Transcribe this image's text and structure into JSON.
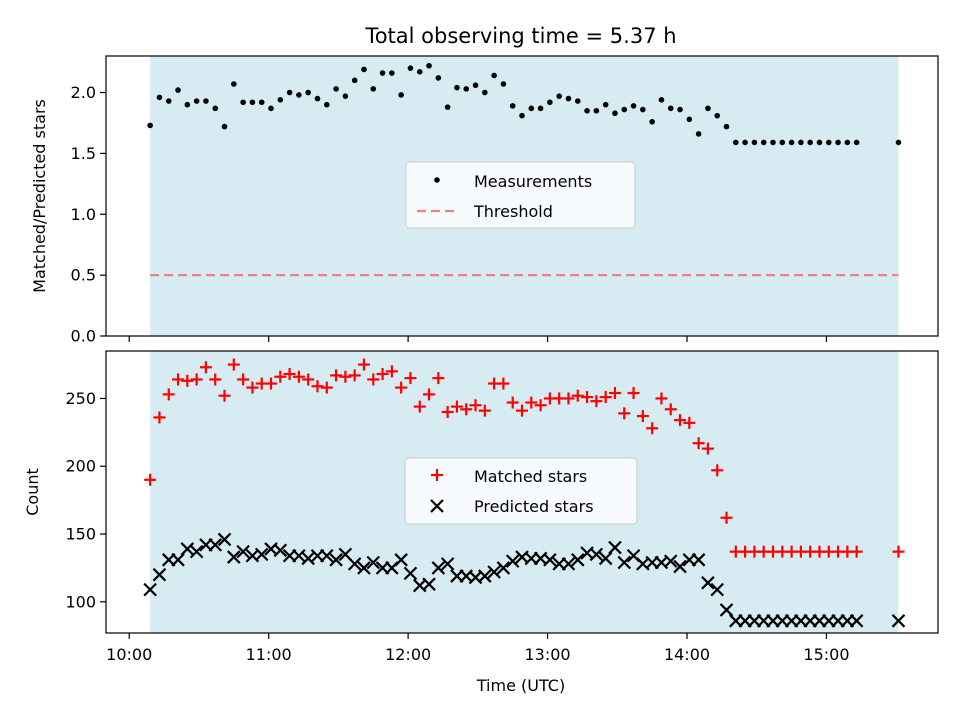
{
  "chart_data": [
    {
      "type": "scatter",
      "title": "Total observing time = 5.37 h",
      "xlabel": "",
      "ylabel": "Matched/Predicted stars",
      "ylim": [
        0,
        2.3
      ],
      "yticks": [
        "0.0",
        "0.5",
        "1.0",
        "1.5",
        "2.0"
      ],
      "shaded_span": {
        "start": "10:09",
        "end": "15:31",
        "color": "#add8e6"
      },
      "legend_position": "center",
      "series": [
        {
          "name": "Measurements",
          "marker": "dot",
          "color": "#000000",
          "x": [
            "10:09",
            "10:13",
            "10:17",
            "10:21",
            "10:25",
            "10:29",
            "10:33",
            "10:37",
            "10:41",
            "10:45",
            "10:49",
            "10:53",
            "10:57",
            "11:01",
            "11:05",
            "11:09",
            "11:13",
            "11:17",
            "11:21",
            "11:25",
            "11:29",
            "11:33",
            "11:37",
            "11:41",
            "11:45",
            "11:49",
            "11:53",
            "11:57",
            "12:01",
            "12:05",
            "12:09",
            "12:13",
            "12:17",
            "12:21",
            "12:25",
            "12:29",
            "12:33",
            "12:37",
            "12:41",
            "12:45",
            "12:49",
            "12:53",
            "12:57",
            "13:01",
            "13:05",
            "13:09",
            "13:13",
            "13:17",
            "13:21",
            "13:25",
            "13:29",
            "13:33",
            "13:37",
            "13:41",
            "13:45",
            "13:49",
            "13:53",
            "13:57",
            "14:01",
            "14:05",
            "14:09",
            "14:13",
            "14:17",
            "14:21",
            "14:25",
            "14:29",
            "14:33",
            "14:37",
            "14:41",
            "14:45",
            "14:49",
            "14:53",
            "14:57",
            "15:01",
            "15:05",
            "15:09",
            "15:13",
            "15:31"
          ],
          "y": [
            1.73,
            1.96,
            1.93,
            2.02,
            1.9,
            1.93,
            1.93,
            1.87,
            1.72,
            2.07,
            1.92,
            1.92,
            1.92,
            1.87,
            1.94,
            2.0,
            1.98,
            2.0,
            1.95,
            1.9,
            2.03,
            1.97,
            2.1,
            2.19,
            2.03,
            2.16,
            2.16,
            1.98,
            2.2,
            2.17,
            2.22,
            2.12,
            1.88,
            2.04,
            2.03,
            2.06,
            2.0,
            2.14,
            2.07,
            1.89,
            1.81,
            1.87,
            1.87,
            1.92,
            1.97,
            1.95,
            1.93,
            1.85,
            1.85,
            1.9,
            1.83,
            1.86,
            1.89,
            1.86,
            1.76,
            1.94,
            1.87,
            1.86,
            1.78,
            1.66,
            1.87,
            1.81,
            1.72,
            1.59,
            1.59,
            1.59,
            1.59,
            1.59,
            1.59,
            1.59,
            1.59,
            1.59,
            1.59,
            1.59,
            1.59,
            1.59,
            1.59,
            1.59
          ]
        },
        {
          "name": "Threshold",
          "type": "line",
          "style": "dashed",
          "color": "#f08080",
          "y": 0.5
        }
      ]
    },
    {
      "type": "scatter",
      "title": "",
      "xlabel": "Time (UTC)",
      "ylabel": "Count",
      "ylim": [
        77,
        285
      ],
      "yticks": [
        "100",
        "150",
        "200",
        "250"
      ],
      "xticks": [
        "10:00",
        "11:00",
        "12:00",
        "13:00",
        "14:00",
        "15:00"
      ],
      "xlim": [
        "09:50",
        "15:48"
      ],
      "shaded_span": {
        "start": "10:09",
        "end": "15:31",
        "color": "#add8e6"
      },
      "legend_position": "center",
      "series": [
        {
          "name": "Matched stars",
          "marker": "plus",
          "color": "#ff0000",
          "x": [
            "10:09",
            "10:13",
            "10:17",
            "10:21",
            "10:25",
            "10:29",
            "10:33",
            "10:37",
            "10:41",
            "10:45",
            "10:49",
            "10:53",
            "10:57",
            "11:01",
            "11:05",
            "11:09",
            "11:13",
            "11:17",
            "11:21",
            "11:25",
            "11:29",
            "11:33",
            "11:37",
            "11:41",
            "11:45",
            "11:49",
            "11:53",
            "11:57",
            "12:01",
            "12:05",
            "12:09",
            "12:13",
            "12:17",
            "12:21",
            "12:25",
            "12:29",
            "12:33",
            "12:37",
            "12:41",
            "12:45",
            "12:49",
            "12:53",
            "12:57",
            "13:01",
            "13:05",
            "13:09",
            "13:13",
            "13:17",
            "13:21",
            "13:25",
            "13:29",
            "13:33",
            "13:37",
            "13:41",
            "13:45",
            "13:49",
            "13:53",
            "13:57",
            "14:01",
            "14:05",
            "14:09",
            "14:13",
            "14:17",
            "14:21",
            "14:25",
            "14:29",
            "14:33",
            "14:37",
            "14:41",
            "14:45",
            "14:49",
            "14:53",
            "14:57",
            "15:01",
            "15:05",
            "15:09",
            "15:13",
            "15:31"
          ],
          "y": [
            190,
            236,
            253,
            264,
            263,
            264,
            273,
            264,
            252,
            275,
            264,
            258,
            261,
            261,
            266,
            268,
            266,
            264,
            259,
            258,
            267,
            266,
            267,
            275,
            264,
            268,
            270,
            258,
            265,
            244,
            253,
            265,
            240,
            244,
            242,
            245,
            241,
            261,
            261,
            247,
            241,
            247,
            245,
            250,
            250,
            250,
            252,
            251,
            248,
            251,
            254,
            239,
            254,
            237,
            228,
            250,
            242,
            234,
            232,
            217,
            213,
            197,
            162,
            137,
            137,
            137,
            137,
            137,
            137,
            137,
            137,
            137,
            137,
            137,
            137,
            137,
            137,
            137
          ]
        },
        {
          "name": "Predicted stars",
          "marker": "x",
          "color": "#000000",
          "x": [
            "10:09",
            "10:13",
            "10:17",
            "10:21",
            "10:25",
            "10:29",
            "10:33",
            "10:37",
            "10:41",
            "10:45",
            "10:49",
            "10:53",
            "10:57",
            "11:01",
            "11:05",
            "11:09",
            "11:13",
            "11:17",
            "11:21",
            "11:25",
            "11:29",
            "11:33",
            "11:37",
            "11:41",
            "11:45",
            "11:49",
            "11:53",
            "11:57",
            "12:01",
            "12:05",
            "12:09",
            "12:13",
            "12:17",
            "12:21",
            "12:25",
            "12:29",
            "12:33",
            "12:37",
            "12:41",
            "12:45",
            "12:49",
            "12:53",
            "12:57",
            "13:01",
            "13:05",
            "13:09",
            "13:13",
            "13:17",
            "13:21",
            "13:25",
            "13:29",
            "13:33",
            "13:37",
            "13:41",
            "13:45",
            "13:49",
            "13:53",
            "13:57",
            "14:01",
            "14:05",
            "14:09",
            "14:13",
            "14:17",
            "14:21",
            "14:25",
            "14:29",
            "14:33",
            "14:37",
            "14:41",
            "14:45",
            "14:49",
            "14:53",
            "14:57",
            "15:01",
            "15:05",
            "15:09",
            "15:13",
            "15:31"
          ],
          "y": [
            109,
            120,
            131,
            131,
            139,
            137,
            142,
            142,
            146,
            133,
            137,
            134,
            135,
            139,
            138,
            134,
            134,
            132,
            134,
            134,
            131,
            135,
            128,
            125,
            129,
            125,
            125,
            131,
            121,
            112,
            113,
            125,
            128,
            119,
            119,
            118,
            119,
            122,
            125,
            130,
            133,
            132,
            132,
            131,
            128,
            128,
            131,
            136,
            135,
            132,
            140,
            129,
            134,
            128,
            129,
            129,
            130,
            126,
            131,
            131,
            114,
            109,
            94,
            86,
            86,
            86,
            86,
            86,
            86,
            86,
            86,
            86,
            86,
            86,
            86,
            86,
            86,
            86
          ]
        }
      ]
    }
  ]
}
